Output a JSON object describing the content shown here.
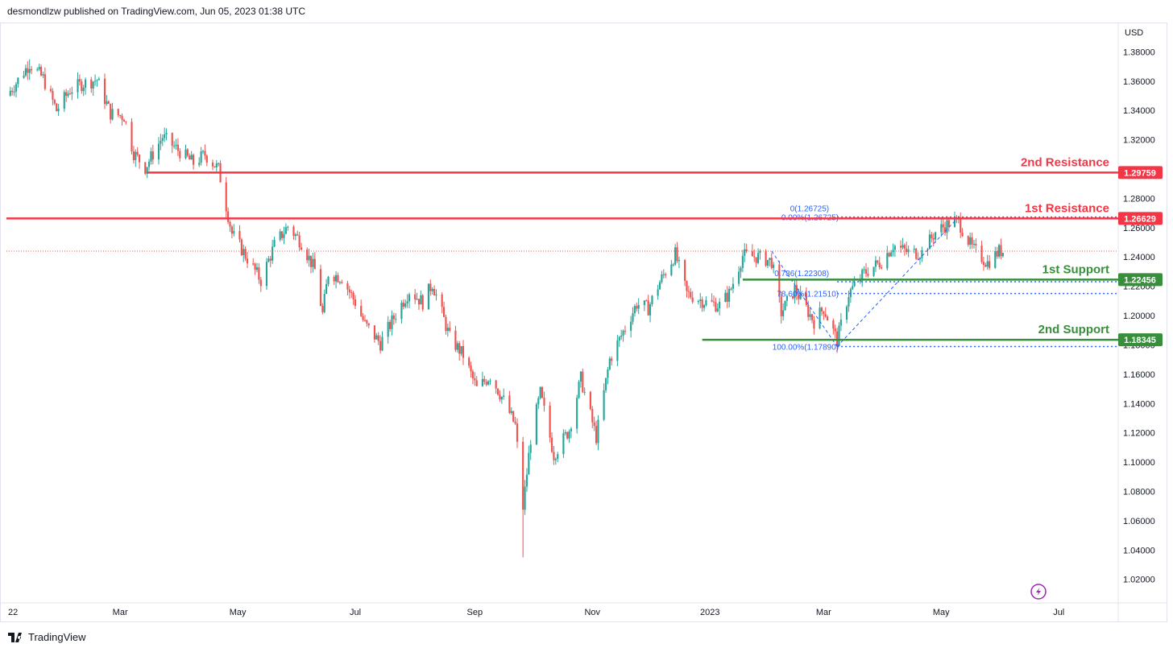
{
  "header": {
    "text": "desmondlzw published on TradingView.com, Jun 05, 2023 01:38 UTC"
  },
  "footer": {
    "logo_text": "TradingView"
  },
  "colors": {
    "up": "#26a69a",
    "down": "#ef5350",
    "resistance": "#f23645",
    "support": "#388e3c",
    "fib": "#2962ff",
    "fib_text": "#2962ff",
    "axis_text": "#131722"
  },
  "icons": {
    "flash": "lightning-icon",
    "logo": "tradingview-logo-icon"
  },
  "chart_data": {
    "type": "candlestick",
    "currency_label": "USD",
    "y_ticks": [
      1.02,
      1.04,
      1.06,
      1.08,
      1.1,
      1.12,
      1.14,
      1.16,
      1.18,
      1.2,
      1.22,
      1.24,
      1.26,
      1.28,
      1.3,
      1.32,
      1.34,
      1.36,
      1.38
    ],
    "y_tick_labels": [
      "1.02000",
      "1.04000",
      "1.06000",
      "1.08000",
      "1.10000",
      "1.12000",
      "1.14000",
      "1.16000",
      "1.18000",
      "1.20000",
      "1.22000",
      "1.24000",
      "1.26000",
      "1.28000",
      "1.30000",
      "1.32000",
      "1.34000",
      "1.36000",
      "1.38000"
    ],
    "ylim": [
      1.005,
      1.4
    ],
    "x_labels": [
      "22",
      "Mar",
      "May",
      "Jul",
      "Sep",
      "Nov",
      "2023",
      "Mar",
      "May",
      "Jul"
    ],
    "x_range": [
      "2022-01-01",
      "2023-07-31"
    ],
    "x_label_dates": [
      "2022-01-01",
      "2022-03-01",
      "2022-05-01",
      "2022-07-01",
      "2022-09-01",
      "2022-11-01",
      "2023-01-01",
      "2023-03-01",
      "2023-05-01",
      "2023-07-01"
    ],
    "price_path": [
      [
        "2022-01-01",
        1.35
      ],
      [
        "2022-01-05",
        1.357
      ],
      [
        "2022-01-13",
        1.372
      ],
      [
        "2022-01-20",
        1.362
      ],
      [
        "2022-01-27",
        1.34
      ],
      [
        "2022-02-03",
        1.354
      ],
      [
        "2022-02-09",
        1.358
      ],
      [
        "2022-02-17",
        1.361
      ],
      [
        "2022-02-24",
        1.338
      ],
      [
        "2022-03-03",
        1.336
      ],
      [
        "2022-03-08",
        1.311
      ],
      [
        "2022-03-14",
        1.301
      ],
      [
        "2022-03-23",
        1.322
      ],
      [
        "2022-03-31",
        1.313
      ],
      [
        "2022-04-08",
        1.304
      ],
      [
        "2022-04-14",
        1.31
      ],
      [
        "2022-04-21",
        1.3
      ],
      [
        "2022-04-28",
        1.256
      ],
      [
        "2022-05-06",
        1.239
      ],
      [
        "2022-05-13",
        1.224
      ],
      [
        "2022-05-20",
        1.248
      ],
      [
        "2022-05-27",
        1.261
      ],
      [
        "2022-06-03",
        1.25
      ],
      [
        "2022-06-10",
        1.231
      ],
      [
        "2022-06-14",
        1.201
      ],
      [
        "2022-06-17",
        1.229
      ],
      [
        "2022-06-24",
        1.226
      ],
      [
        "2022-07-01",
        1.209
      ],
      [
        "2022-07-06",
        1.194
      ],
      [
        "2022-07-14",
        1.181
      ],
      [
        "2022-07-22",
        1.201
      ],
      [
        "2022-07-29",
        1.217
      ],
      [
        "2022-08-05",
        1.209
      ],
      [
        "2022-08-10",
        1.222
      ],
      [
        "2022-08-19",
        1.185
      ],
      [
        "2022-08-26",
        1.173
      ],
      [
        "2022-09-02",
        1.15
      ],
      [
        "2022-09-09",
        1.159
      ],
      [
        "2022-09-16",
        1.142
      ],
      [
        "2022-09-22",
        1.125
      ],
      [
        "2022-09-26",
        1.069
      ],
      [
        "2022-09-30",
        1.116
      ],
      [
        "2022-10-05",
        1.147
      ],
      [
        "2022-10-12",
        1.105
      ],
      [
        "2022-10-20",
        1.122
      ],
      [
        "2022-10-26",
        1.157
      ],
      [
        "2022-11-03",
        1.117
      ],
      [
        "2022-11-10",
        1.17
      ],
      [
        "2022-11-17",
        1.189
      ],
      [
        "2022-11-24",
        1.208
      ],
      [
        "2022-11-30",
        1.205
      ],
      [
        "2022-12-06",
        1.223
      ],
      [
        "2022-12-14",
        1.242
      ],
      [
        "2022-12-20",
        1.215
      ],
      [
        "2022-12-30",
        1.209
      ],
      [
        "2023-01-06",
        1.207
      ],
      [
        "2023-01-11",
        1.215
      ],
      [
        "2023-01-18",
        1.241
      ],
      [
        "2023-01-26",
        1.24
      ],
      [
        "2023-02-02",
        1.237
      ],
      [
        "2023-02-07",
        1.202
      ],
      [
        "2023-02-14",
        1.218
      ],
      [
        "2023-02-24",
        1.196
      ],
      [
        "2023-03-01",
        1.205
      ],
      [
        "2023-03-08",
        1.183
      ],
      [
        "2023-03-14",
        1.215
      ],
      [
        "2023-03-22",
        1.229
      ],
      [
        "2023-03-31",
        1.237
      ],
      [
        "2023-04-06",
        1.248
      ],
      [
        "2023-04-14",
        1.243
      ],
      [
        "2023-04-21",
        1.243
      ],
      [
        "2023-04-28",
        1.257
      ],
      [
        "2023-05-05",
        1.263
      ],
      [
        "2023-05-10",
        1.264
      ],
      [
        "2023-05-17",
        1.246
      ],
      [
        "2023-05-25",
        1.236
      ],
      [
        "2023-05-31",
        1.244
      ],
      [
        "2023-06-02",
        1.244
      ]
    ],
    "extremes": [
      {
        "date": "2022-01-13",
        "value": 1.3749
      },
      {
        "date": "2022-09-26",
        "value": 1.035
      },
      {
        "date": "2023-05-10",
        "value": 1.268
      }
    ],
    "last_price": 1.244,
    "levels": [
      {
        "name": "2nd Resistance",
        "value": 1.29759,
        "label": "1.29759",
        "kind": "resistance",
        "from": "2022-03-15"
      },
      {
        "name": "1st Resistance",
        "value": 1.26629,
        "label": "1.26629",
        "kind": "resistance",
        "from": "2022-01-01"
      },
      {
        "name": "1st Support",
        "value": 1.22456,
        "label": "1.22456",
        "kind": "support",
        "from": "2023-01-18"
      },
      {
        "name": "2nd Support",
        "value": 1.18345,
        "label": "1.18345",
        "kind": "support",
        "from": "2022-12-28"
      }
    ],
    "fibonacci": {
      "from_date": "2023-03-08",
      "to_date": "2023-07-31",
      "retracement_levels": [
        {
          "label": "0.00%(1.26725)",
          "value": 1.26725
        },
        {
          "label": "78.60%(1.21510)",
          "value": 1.2151
        },
        {
          "label": "100.00%(1.17890)",
          "value": 1.1789
        }
      ],
      "extra_labels": [
        {
          "label": "0(1.26725)",
          "value": 1.26725
        },
        {
          "label": "0.786(1.22308)",
          "value": 1.22308
        }
      ],
      "dotted_levels": [
        1.26725,
        1.22308,
        1.2151,
        1.1789
      ]
    }
  }
}
